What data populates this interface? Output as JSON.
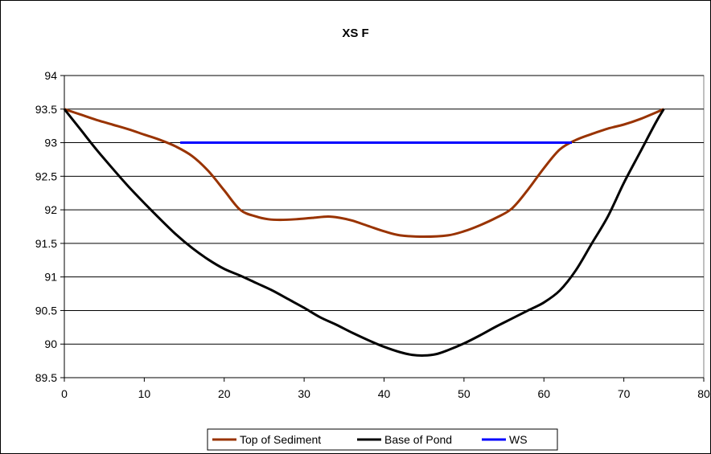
{
  "chart_data": {
    "type": "line",
    "title": "XS F",
    "xlabel": "",
    "ylabel": "",
    "xlim": [
      0,
      80
    ],
    "ylim": [
      89.5,
      94
    ],
    "x_ticks": [
      "0",
      "10",
      "20",
      "30",
      "40",
      "50",
      "60",
      "70",
      "80"
    ],
    "y_ticks": [
      "89.5",
      "90",
      "90.5",
      "91",
      "91.5",
      "92",
      "92.5",
      "93",
      "93.5",
      "94"
    ],
    "grid": "horizontal",
    "legend_position": "bottom",
    "series": [
      {
        "name": "Top of Sediment",
        "color": "#993300",
        "x": [
          0,
          2,
          4,
          6,
          8,
          10,
          12,
          14,
          16,
          18,
          20,
          22,
          24,
          25.5,
          27,
          29,
          31,
          33,
          34.5,
          36,
          38,
          40,
          42,
          45,
          48,
          50,
          52,
          54,
          56,
          58,
          60,
          62,
          64,
          66,
          68,
          70,
          72,
          75
        ],
        "y": [
          93.5,
          93.42,
          93.34,
          93.27,
          93.2,
          93.12,
          93.04,
          92.94,
          92.8,
          92.58,
          92.29,
          92.0,
          91.9,
          91.86,
          91.85,
          91.86,
          91.88,
          91.9,
          91.88,
          91.84,
          91.76,
          91.68,
          91.62,
          91.6,
          91.62,
          91.68,
          91.77,
          91.88,
          92.02,
          92.3,
          92.62,
          92.9,
          93.04,
          93.13,
          93.21,
          93.27,
          93.35,
          93.5
        ]
      },
      {
        "name": "Base of Pond",
        "color": "#000000",
        "x": [
          0,
          2,
          4,
          6,
          8,
          10,
          12,
          14,
          16,
          18,
          20,
          22,
          24,
          26,
          28,
          30,
          32,
          34,
          36,
          38,
          40,
          42,
          43.5,
          45,
          46.5,
          48,
          50,
          52,
          54,
          56,
          58,
          60,
          62,
          64,
          66,
          68,
          70,
          72,
          74,
          75
        ],
        "y": [
          93.5,
          93.2,
          92.9,
          92.62,
          92.35,
          92.1,
          91.86,
          91.63,
          91.43,
          91.26,
          91.12,
          91.02,
          90.91,
          90.8,
          90.67,
          90.54,
          90.4,
          90.29,
          90.17,
          90.06,
          89.96,
          89.88,
          89.84,
          89.83,
          89.85,
          89.91,
          90.01,
          90.13,
          90.26,
          90.38,
          90.5,
          90.62,
          90.8,
          91.1,
          91.5,
          91.9,
          92.4,
          92.85,
          93.3,
          93.5
        ]
      },
      {
        "name": "WS",
        "color": "#0000ff",
        "x": [
          14.5,
          63.5
        ],
        "y": [
          93.0,
          93.0
        ]
      }
    ]
  }
}
